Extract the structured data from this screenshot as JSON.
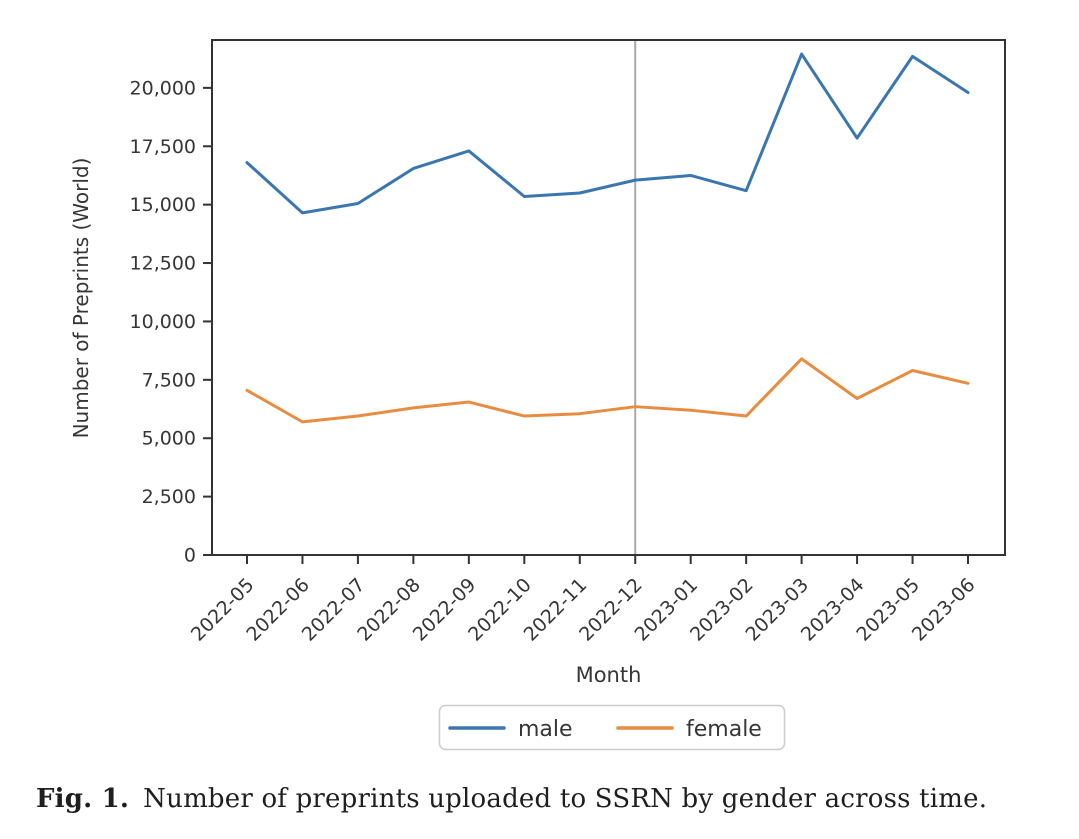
{
  "figure": {
    "caption": {
      "label": "Fig. 1.",
      "text": "Number of preprints uploaded to SSRN by gender across time."
    }
  },
  "chart_data": {
    "type": "line",
    "title": "",
    "xlabel": "Month",
    "ylabel": "Number of Preprints (World)",
    "categories": [
      "2022-05",
      "2022-06",
      "2022-07",
      "2022-08",
      "2022-09",
      "2022-10",
      "2022-11",
      "2022-12",
      "2023-01",
      "2023-02",
      "2023-03",
      "2023-04",
      "2023-05",
      "2023-06"
    ],
    "series": [
      {
        "name": "male",
        "color": "#3a76af",
        "values": [
          16800,
          14650,
          15050,
          16550,
          17300,
          15350,
          15500,
          16050,
          16250,
          15600,
          21450,
          17850,
          21350,
          19800
        ]
      },
      {
        "name": "female",
        "color": "#e78c40",
        "values": [
          7050,
          5700,
          5950,
          6300,
          6550,
          5950,
          6050,
          6350,
          6200,
          5950,
          8400,
          6700,
          7900,
          7350
        ]
      }
    ],
    "ylim": [
      0,
      22050
    ],
    "y_ticks": [
      0,
      2500,
      5000,
      7500,
      10000,
      12500,
      15000,
      17500,
      20000
    ],
    "y_tick_labels": [
      "0",
      "2,500",
      "5,000",
      "7,500",
      "10,000",
      "12,500",
      "15,000",
      "17,500",
      "20,000"
    ],
    "x_tick_rotation_deg": 45,
    "vline": {
      "at_category": "2022-12",
      "color": "#a9a9a9"
    },
    "legend": {
      "entries": [
        "male",
        "female"
      ],
      "position": "below-x-axis"
    },
    "grid": false,
    "axis_color": "#333333",
    "text_color": "#363636"
  }
}
